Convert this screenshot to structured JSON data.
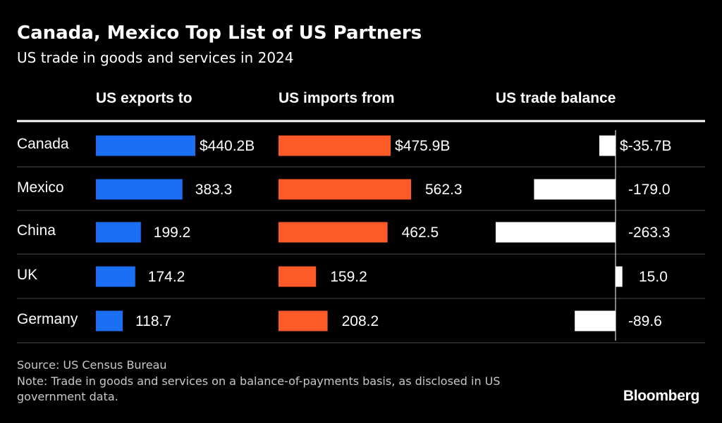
{
  "title": "Canada, Mexico Top List of US Partners",
  "subtitle": "US trade in goods and services in 2024",
  "source": "Source: US Census Bureau",
  "note": "Note: Trade in goods and services on a balance-of-payments basis, as disclosed in US government data.",
  "brand": "Bloomberg",
  "colors": {
    "background": "#000000",
    "exports": "#1a6ff5",
    "imports": "#fc5a26",
    "balance": "#ffffff",
    "gridline": "#4a4a4a"
  },
  "chart_data": {
    "type": "bar",
    "categories": [
      "Canada",
      "Mexico",
      "China",
      "UK",
      "Germany"
    ],
    "panels": [
      {
        "title": "US exports to",
        "values": [
          440.2,
          383.3,
          199.2,
          174.2,
          118.7
        ],
        "labels": [
          "$440.2B",
          "383.3",
          "199.2",
          "174.2",
          "118.7"
        ]
      },
      {
        "title": "US imports from",
        "values": [
          475.9,
          562.3,
          462.5,
          159.2,
          208.2
        ],
        "labels": [
          "$475.9B",
          "562.3",
          "462.5",
          "159.2",
          "208.2"
        ]
      },
      {
        "title": "US trade balance",
        "values": [
          -35.7,
          -179.0,
          -263.3,
          15.0,
          -89.6
        ],
        "labels": [
          "$-35.7B",
          "-179.0",
          "-263.3",
          "15.0",
          "-89.6"
        ]
      }
    ]
  }
}
